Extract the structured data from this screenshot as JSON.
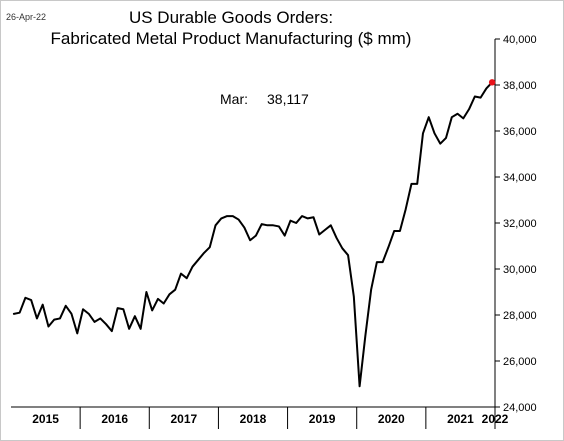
{
  "date_stamp": "26-Apr-22",
  "chart_data": {
    "type": "line",
    "title_line1": "US Durable Goods Orders:",
    "title_line2": "Fabricated Metal Product Manufacturing ($ mm)",
    "annotation": {
      "label": "Mar:",
      "value": "38,117"
    },
    "ylim": [
      24000,
      40000
    ],
    "yticks": [
      24000,
      26000,
      28000,
      30000,
      32000,
      34000,
      36000,
      38000,
      40000
    ],
    "ytick_labels": [
      "24,000",
      "26,000",
      "28,000",
      "30,000",
      "32,000",
      "34,000",
      "36,000",
      "38,000",
      "40,000"
    ],
    "y_axis_position": "right",
    "grid": false,
    "x_start": "2015-01",
    "x_end": "2022-03",
    "year_labels": [
      "2015",
      "2016",
      "2017",
      "2018",
      "2019",
      "2020",
      "2021",
      "2022"
    ],
    "line_color": "#000000",
    "last_point_color": "#e8131a",
    "series": [
      {
        "values": [
          28050,
          28100,
          28750,
          28650,
          27850,
          28450,
          27500,
          27800,
          27850,
          28400,
          28050,
          27200,
          28250,
          28050,
          27700,
          27850,
          27600,
          27300,
          28300,
          28250,
          27400,
          27950,
          27400,
          29000,
          28200,
          28700,
          28500,
          28900,
          29100,
          29800,
          29600,
          30100,
          30400,
          30700,
          30950,
          31900,
          32200,
          32300,
          32300,
          32150,
          31800,
          31250,
          31450,
          31950,
          31900,
          31900,
          31850,
          31450,
          32100,
          32000,
          32300,
          32200,
          32250,
          31500,
          31700,
          31900,
          31350,
          30900,
          30600,
          28800,
          24900,
          27100,
          29100,
          30300,
          30300,
          30950,
          31650,
          31650,
          32600,
          33700,
          33700,
          35900,
          36600,
          35900,
          35450,
          35700,
          36600,
          36750,
          36550,
          36950,
          37500,
          37450,
          37850,
          38117
        ]
      }
    ]
  }
}
